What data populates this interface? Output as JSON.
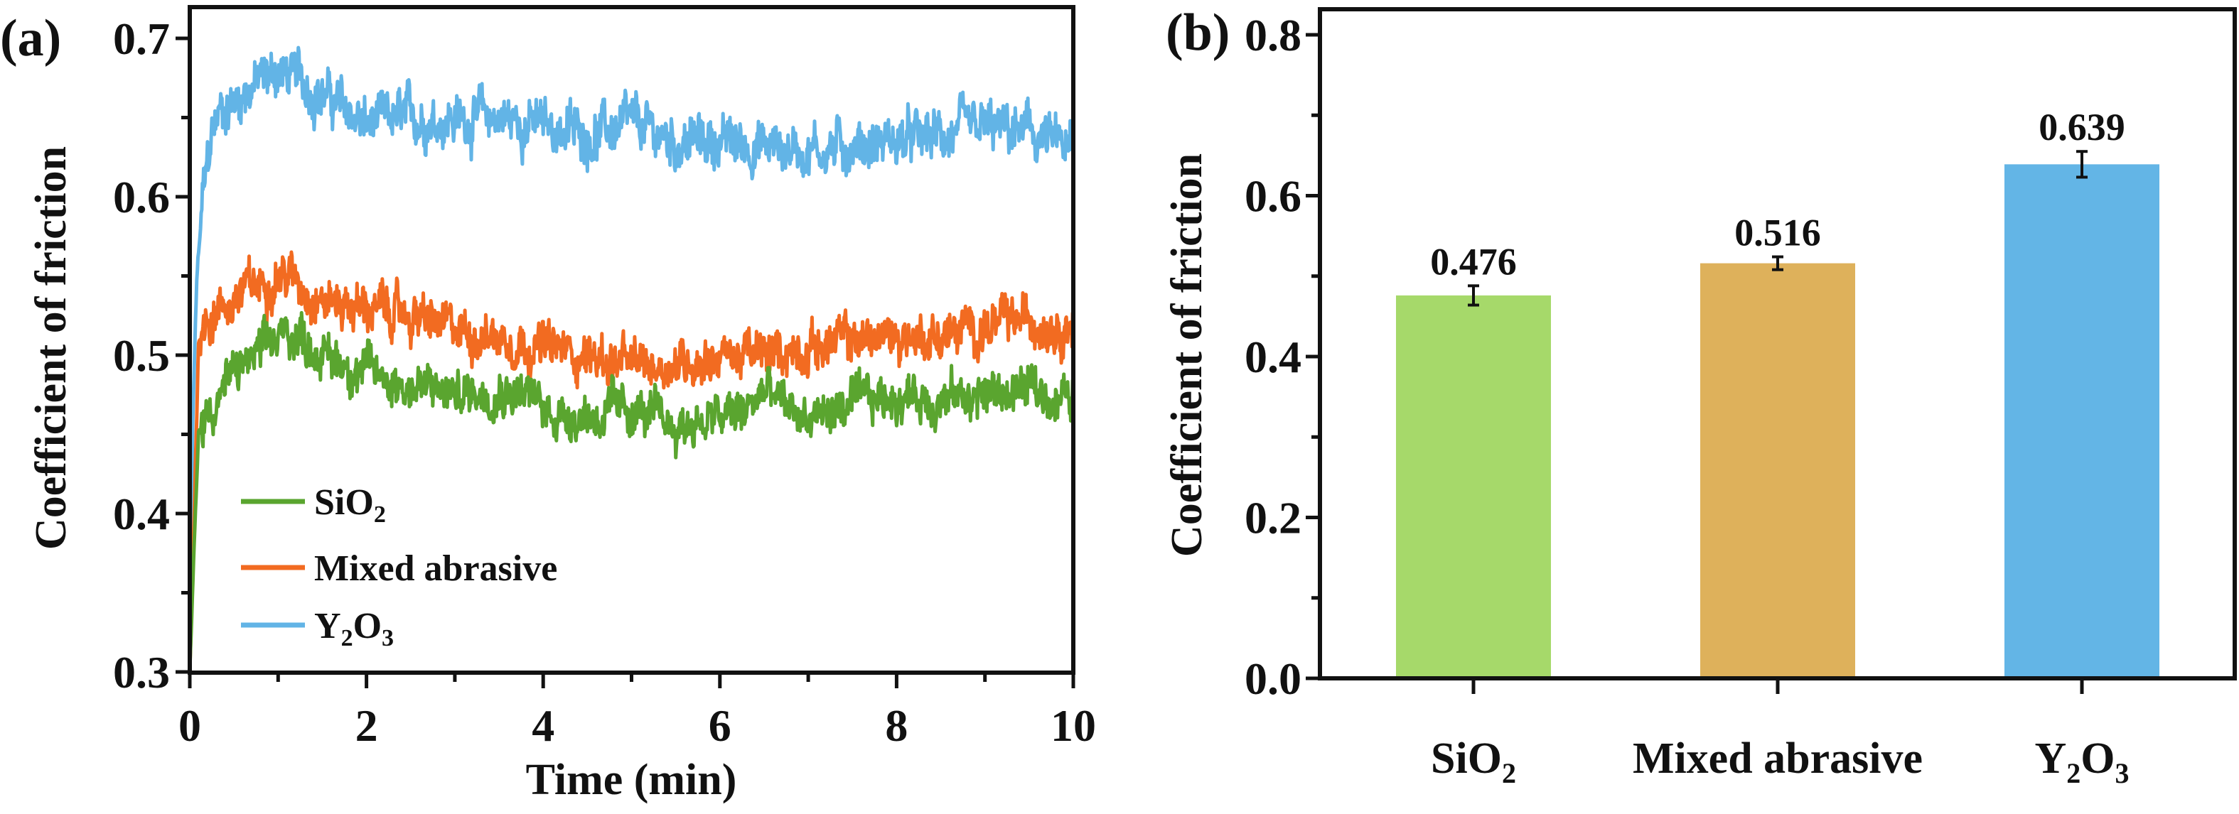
{
  "chart_data": [
    {
      "panel_label": "(a)",
      "type": "line",
      "title": "",
      "xlabel": "Time (min)",
      "ylabel": "Coefficient of friction",
      "xlim": [
        0,
        10
      ],
      "ylim": [
        0.3,
        0.7
      ],
      "xticks": [
        "0",
        "2",
        "4",
        "6",
        "8",
        "10"
      ],
      "xtick_values": [
        0,
        2,
        4,
        6,
        8,
        10
      ],
      "yticks": [
        "0.3",
        "0.4",
        "0.5",
        "0.6",
        "0.7"
      ],
      "ytick_values": [
        0.3,
        0.4,
        0.5,
        0.6,
        0.7
      ],
      "grid": false,
      "legend_position": "bottom-left",
      "series": [
        {
          "name": "SiO2",
          "label_main": "SiO",
          "label_sub": "2",
          "color": "#5aa52f",
          "noise_amplitude": 0.012,
          "x": [
            0,
            0.05,
            0.1,
            0.2,
            0.4,
            0.6,
            0.8,
            1.0,
            1.2,
            1.5,
            2.0,
            2.5,
            3.0,
            3.5,
            3.8,
            4.0,
            4.5,
            5.0,
            5.5,
            6.0,
            6.3,
            6.5,
            6.8,
            7.0,
            7.5,
            8.0,
            8.5,
            9.0,
            9.5,
            10.0
          ],
          "y": [
            0.3,
            0.38,
            0.45,
            0.465,
            0.48,
            0.495,
            0.5,
            0.51,
            0.515,
            0.5,
            0.49,
            0.48,
            0.475,
            0.48,
            0.478,
            0.465,
            0.462,
            0.465,
            0.455,
            0.46,
            0.465,
            0.478,
            0.465,
            0.46,
            0.468,
            0.475,
            0.472,
            0.475,
            0.478,
            0.472
          ]
        },
        {
          "name": "Mixed abrasive",
          "label_main": "Mixed abrasive",
          "label_sub": "",
          "color": "#f26b21",
          "noise_amplitude": 0.012,
          "x": [
            0,
            0.05,
            0.1,
            0.2,
            0.4,
            0.6,
            0.8,
            1.0,
            1.2,
            1.5,
            2.0,
            2.5,
            3.0,
            3.5,
            4.0,
            4.5,
            5.0,
            5.5,
            6.0,
            6.5,
            7.0,
            7.5,
            8.0,
            8.5,
            9.0,
            9.5,
            10.0
          ],
          "y": [
            0.3,
            0.4,
            0.51,
            0.525,
            0.53,
            0.54,
            0.545,
            0.552,
            0.548,
            0.535,
            0.53,
            0.525,
            0.515,
            0.512,
            0.505,
            0.5,
            0.493,
            0.495,
            0.5,
            0.5,
            0.505,
            0.51,
            0.512,
            0.512,
            0.518,
            0.522,
            0.52
          ]
        },
        {
          "name": "Y2O3",
          "label_main": "Y",
          "label_sub": "2",
          "label_main2": "O",
          "label_sub2": "3",
          "color": "#62b4e6",
          "noise_amplitude": 0.013,
          "x": [
            0,
            0.03,
            0.08,
            0.15,
            0.25,
            0.35,
            0.5,
            0.7,
            1.0,
            1.2,
            1.5,
            2.0,
            2.5,
            3.0,
            3.5,
            4.0,
            4.5,
            5.0,
            5.5,
            6.0,
            6.5,
            7.0,
            7.5,
            8.0,
            8.5,
            9.0,
            9.5,
            10.0
          ],
          "y": [
            0.3,
            0.45,
            0.55,
            0.6,
            0.64,
            0.655,
            0.66,
            0.67,
            0.68,
            0.675,
            0.665,
            0.645,
            0.65,
            0.65,
            0.65,
            0.645,
            0.64,
            0.645,
            0.635,
            0.635,
            0.632,
            0.63,
            0.632,
            0.635,
            0.638,
            0.642,
            0.64,
            0.628
          ]
        }
      ]
    },
    {
      "panel_label": "(b)",
      "type": "bar",
      "title": "",
      "xlabel": "",
      "ylabel": "Coefficient of friction",
      "ylim": [
        0.0,
        0.8
      ],
      "yticks": [
        "0.0",
        "0.2",
        "0.4",
        "0.6",
        "0.8"
      ],
      "ytick_values": [
        0.0,
        0.2,
        0.4,
        0.6,
        0.8
      ],
      "grid": false,
      "categories": [
        "SiO2",
        "Mixed abrasive",
        "Y2O3"
      ],
      "category_labels": [
        {
          "main": "SiO",
          "sub": "2",
          "main2": "",
          "sub2": ""
        },
        {
          "main": "Mixed abrasive",
          "sub": "",
          "main2": "",
          "sub2": ""
        },
        {
          "main": "Y",
          "sub": "2",
          "main2": "O",
          "sub2": "3"
        }
      ],
      "values": [
        0.476,
        0.516,
        0.639
      ],
      "value_labels": [
        "0.476",
        "0.516",
        "0.639"
      ],
      "errors": [
        0.012,
        0.008,
        0.016
      ],
      "colors": [
        "#a6d96a",
        "#deb15b",
        "#63b5e6"
      ]
    }
  ]
}
